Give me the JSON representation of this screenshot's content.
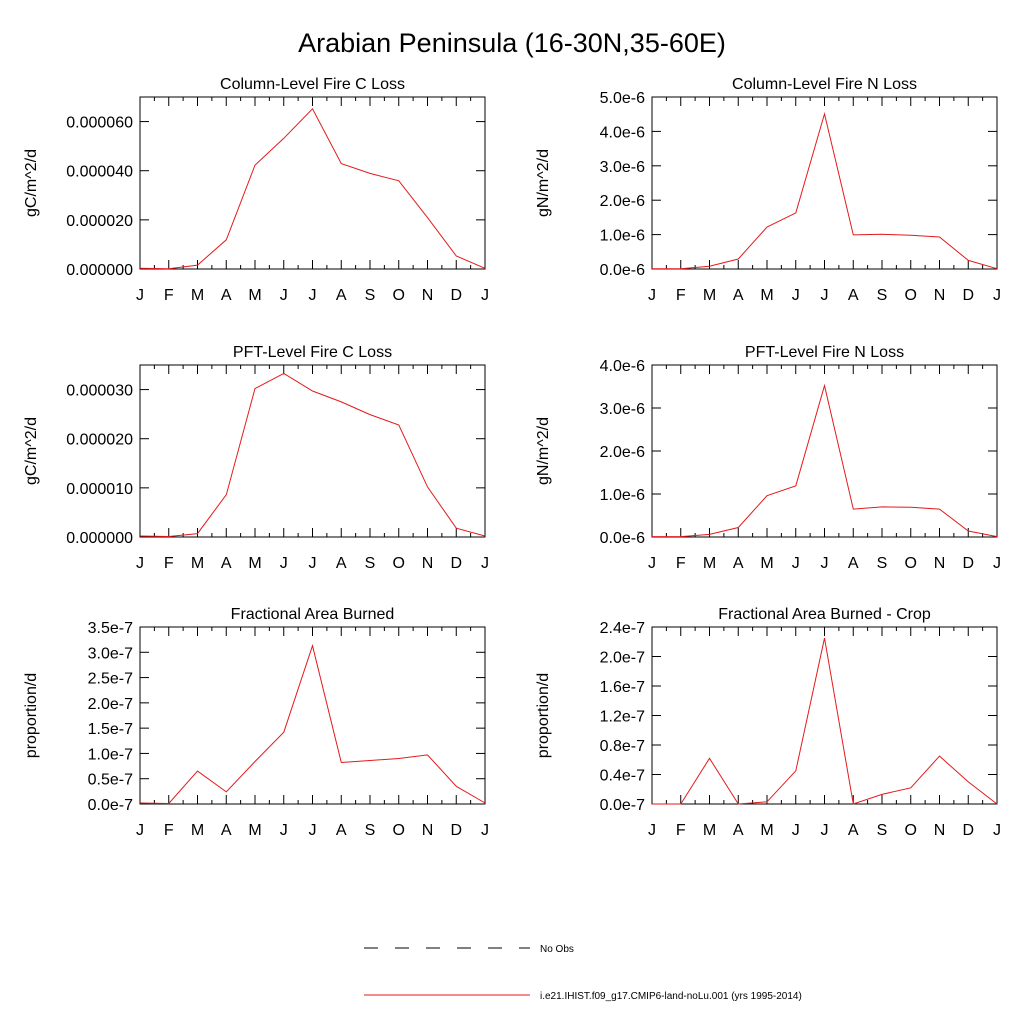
{
  "figure_title": "Arabian Peninsula (16-30N,35-60E)",
  "colors": {
    "model_line": "#e41a1c",
    "obs_line": "#000000",
    "axis": "#000000"
  },
  "legend": [
    {
      "label": "No Obs",
      "style": "dashed"
    },
    {
      "label": "i.e21.IHIST.f09_g17.CMIP6-land-noLu.001 (yrs 1995-2014)",
      "style": "solid"
    }
  ],
  "chart_data": [
    {
      "type": "line",
      "title": "Column-Level Fire C Loss",
      "ylabel": "gC/m^2/d",
      "categories": [
        "J",
        "F",
        "M",
        "A",
        "M",
        "J",
        "J",
        "A",
        "S",
        "O",
        "N",
        "D",
        "J"
      ],
      "ylim": [
        0,
        7e-05
      ],
      "ytick_values": [
        0,
        2e-05,
        4e-05,
        6e-05
      ],
      "ytick_labels": [
        "0.000000",
        "0.000020",
        "0.000040",
        "0.000060"
      ],
      "series": [
        {
          "values": [
            3e-07,
            1e-07,
            1.6e-06,
            1.19e-05,
            4.23e-05,
            5.32e-05,
            6.52e-05,
            4.29e-05,
            3.89e-05,
            3.59e-05,
            2.09e-05,
            5.3e-06,
            3e-07
          ]
        }
      ]
    },
    {
      "type": "line",
      "title": "Column-Level Fire N Loss",
      "ylabel": "gN/m^2/d",
      "categories": [
        "J",
        "F",
        "M",
        "A",
        "M",
        "J",
        "J",
        "A",
        "S",
        "O",
        "N",
        "D",
        "J"
      ],
      "ylim": [
        0,
        5e-06
      ],
      "ytick_values": [
        0,
        1e-06,
        2e-06,
        3e-06,
        4e-06,
        5e-06
      ],
      "ytick_labels": [
        "0.0e-6",
        "1.0e-6",
        "2.0e-6",
        "3.0e-6",
        "4.0e-6",
        "5.0e-6"
      ],
      "series": [
        {
          "values": [
            1e-08,
            1e-08,
            8e-08,
            2.9e-07,
            1.22e-06,
            1.63e-06,
            4.51e-06,
            9.9e-07,
            1.01e-06,
            9.8e-07,
            9.3e-07,
            2.5e-07,
            1e-08
          ]
        }
      ]
    },
    {
      "type": "line",
      "title": "PFT-Level Fire C Loss",
      "ylabel": "gC/m^2/d",
      "categories": [
        "J",
        "F",
        "M",
        "A",
        "M",
        "J",
        "J",
        "A",
        "S",
        "O",
        "N",
        "D",
        "J"
      ],
      "ylim": [
        0,
        3.5e-05
      ],
      "ytick_values": [
        0,
        1e-05,
        2e-05,
        3e-05
      ],
      "ytick_labels": [
        "0.000000",
        "0.000010",
        "0.000020",
        "0.000030"
      ],
      "series": [
        {
          "values": [
            2e-07,
            1e-07,
            7e-07,
            8.6e-06,
            3.02e-05,
            3.33e-05,
            2.97e-05,
            2.75e-05,
            2.49e-05,
            2.28e-05,
            1.02e-05,
            1.8e-06,
            2e-07
          ]
        }
      ]
    },
    {
      "type": "line",
      "title": "PFT-Level Fire N Loss",
      "ylabel": "gN/m^2/d",
      "categories": [
        "J",
        "F",
        "M",
        "A",
        "M",
        "J",
        "J",
        "A",
        "S",
        "O",
        "N",
        "D",
        "J"
      ],
      "ylim": [
        0,
        4e-06
      ],
      "ytick_values": [
        0,
        1e-06,
        2e-06,
        3e-06,
        4e-06
      ],
      "ytick_labels": [
        "0.0e-6",
        "1.0e-6",
        "2.0e-6",
        "3.0e-6",
        "4.0e-6"
      ],
      "series": [
        {
          "values": [
            1e-08,
            1e-08,
            6e-08,
            2.2e-07,
            9.6e-07,
            1.19e-06,
            3.52e-06,
            6.5e-07,
            7e-07,
            6.9e-07,
            6.5e-07,
            1.4e-07,
            1e-08
          ]
        }
      ]
    },
    {
      "type": "line",
      "title": "Fractional Area Burned",
      "ylabel": "proportion/d",
      "categories": [
        "J",
        "F",
        "M",
        "A",
        "M",
        "J",
        "J",
        "A",
        "S",
        "O",
        "N",
        "D",
        "J"
      ],
      "ylim": [
        0,
        3.5e-07
      ],
      "ytick_values": [
        0,
        5e-08,
        1e-07,
        1.5e-07,
        2e-07,
        2.5e-07,
        3e-07,
        3.5e-07
      ],
      "ytick_labels": [
        "0.0e-7",
        "0.5e-7",
        "1.0e-7",
        "1.5e-7",
        "2.0e-7",
        "2.5e-7",
        "3.0e-7",
        "3.5e-7"
      ],
      "series": [
        {
          "values": [
            2e-09,
            1e-09,
            6.5e-08,
            2.4e-08,
            8.4e-08,
            1.42e-07,
            3.13e-07,
            8.2e-08,
            8.6e-08,
            9e-08,
            9.7e-08,
            3.5e-08,
            2e-09
          ]
        }
      ]
    },
    {
      "type": "line",
      "title": "Fractional Area Burned - Crop",
      "ylabel": "proportion/d",
      "categories": [
        "J",
        "F",
        "M",
        "A",
        "M",
        "J",
        "J",
        "A",
        "S",
        "O",
        "N",
        "D",
        "J"
      ],
      "ylim": [
        0,
        2.4e-07
      ],
      "ytick_values": [
        0,
        4e-08,
        8e-08,
        1.2e-07,
        1.6e-07,
        2e-07,
        2.4e-07
      ],
      "ytick_labels": [
        "0.0e-7",
        "0.4e-7",
        "0.8e-7",
        "1.2e-7",
        "1.6e-7",
        "2.0e-7",
        "2.4e-7"
      ],
      "series": [
        {
          "values": [
            0,
            0,
            6.2e-08,
            0,
            3e-09,
            4.5e-08,
            2.25e-07,
            0,
            1.3e-08,
            2.2e-08,
            6.5e-08,
            3e-08,
            0
          ]
        }
      ]
    }
  ]
}
